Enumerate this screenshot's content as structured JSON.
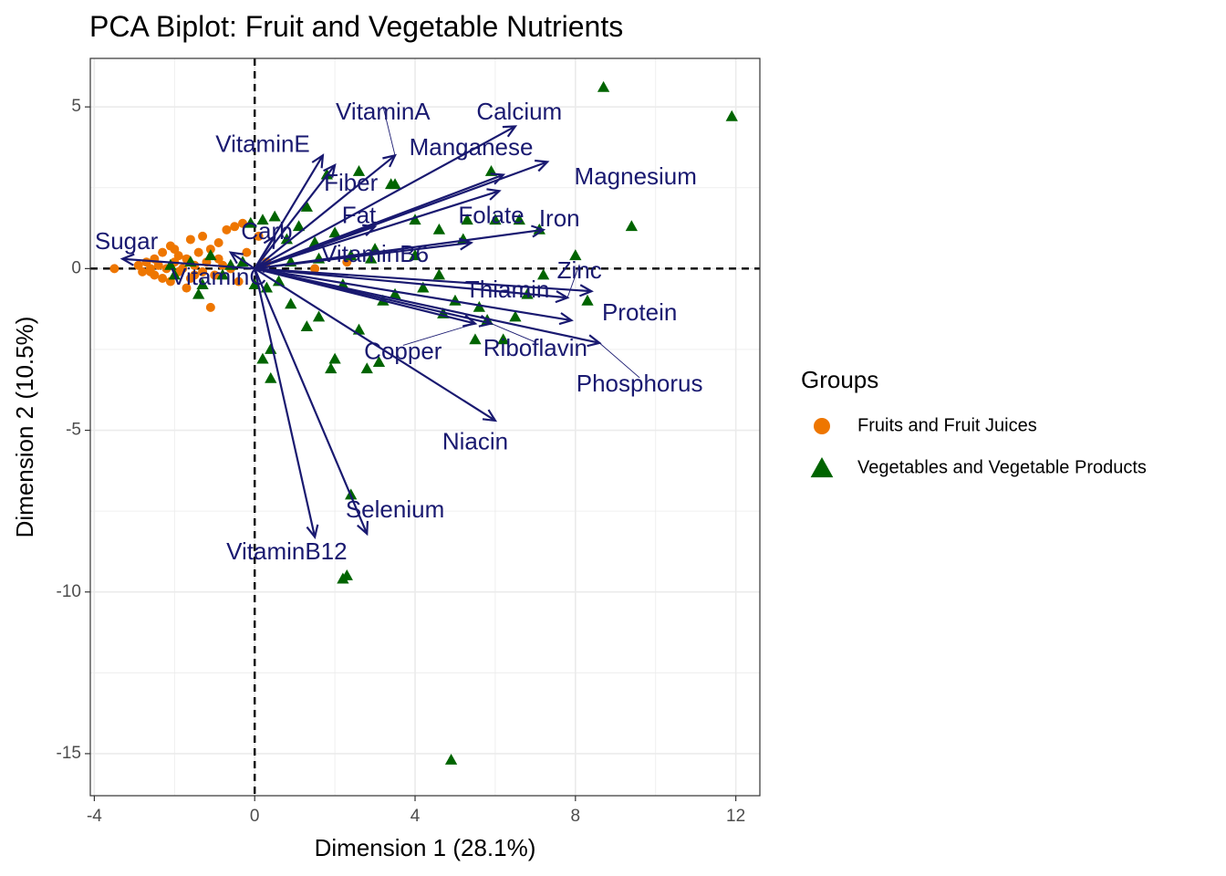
{
  "colors": {
    "fruits": "#ee7600",
    "vegetables": "#006400",
    "arrow": "#191970",
    "grid": "#ebebeb",
    "panel_border": "#333333"
  },
  "chart_data": {
    "type": "scatter",
    "title": "PCA Biplot: Fruit and Vegetable Nutrients",
    "xlabel": "Dimension 1 (28.1%)",
    "ylabel": "Dimension 2 (10.5%)",
    "xlim": [
      -4.1,
      12.6
    ],
    "ylim": [
      -16.3,
      6.5
    ],
    "x_ticks": [
      -4,
      0,
      4,
      8,
      12
    ],
    "y_ticks": [
      5,
      0,
      -5,
      -10,
      -15
    ],
    "grid": true,
    "reference_lines": {
      "x": 0,
      "y": 0,
      "style": "dashed"
    },
    "legend": {
      "title": "Groups",
      "position": "right",
      "entries": [
        "Fruits and Fruit Juices",
        "Vegetables and Vegetable Products"
      ]
    },
    "series": [
      {
        "name": "Fruits and Fruit Juices",
        "shape": "circle",
        "points": [
          [
            -3.5,
            0.0
          ],
          [
            -2.9,
            0.1
          ],
          [
            -2.8,
            -0.1
          ],
          [
            -2.7,
            0.2
          ],
          [
            -2.6,
            0.0
          ],
          [
            -2.5,
            -0.2
          ],
          [
            -2.5,
            0.3
          ],
          [
            -2.4,
            0.1
          ],
          [
            -2.3,
            -0.3
          ],
          [
            -2.3,
            0.5
          ],
          [
            -2.2,
            0.0
          ],
          [
            -2.1,
            0.7
          ],
          [
            -2.1,
            -0.4
          ],
          [
            -2.0,
            0.2
          ],
          [
            -1.9,
            -0.1
          ],
          [
            -1.9,
            0.4
          ],
          [
            -1.8,
            0.0
          ],
          [
            -1.7,
            -0.6
          ],
          [
            -1.7,
            0.3
          ],
          [
            -1.6,
            0.9
          ],
          [
            -1.6,
            -0.3
          ],
          [
            -1.5,
            0.1
          ],
          [
            -1.4,
            0.5
          ],
          [
            -1.3,
            -0.1
          ],
          [
            -1.3,
            1.0
          ],
          [
            -1.2,
            0.2
          ],
          [
            -1.1,
            -1.2
          ],
          [
            -1.1,
            0.6
          ],
          [
            -1.0,
            -0.2
          ],
          [
            -0.9,
            0.8
          ],
          [
            -0.8,
            0.1
          ],
          [
            -0.7,
            1.2
          ],
          [
            -0.6,
            0.0
          ],
          [
            -0.5,
            1.3
          ],
          [
            -0.4,
            -0.4
          ],
          [
            -0.3,
            1.4
          ],
          [
            -0.2,
            0.5
          ],
          [
            0.1,
            1.0
          ],
          [
            0.3,
            0.2
          ],
          [
            1.5,
            0.0
          ],
          [
            2.3,
            0.2
          ],
          [
            -2.6,
            -0.1
          ],
          [
            -2.0,
            0.6
          ],
          [
            -1.5,
            -0.2
          ],
          [
            -0.9,
            0.3
          ]
        ]
      },
      {
        "name": "Vegetables and Vegetable Products",
        "shape": "triangle",
        "points": [
          [
            8.7,
            5.6
          ],
          [
            11.9,
            4.7
          ],
          [
            9.4,
            1.3
          ],
          [
            7.1,
            1.2
          ],
          [
            8.0,
            0.4
          ],
          [
            8.3,
            -1.0
          ],
          [
            7.2,
            -0.2
          ],
          [
            6.6,
            1.5
          ],
          [
            6.0,
            1.5
          ],
          [
            5.3,
            1.5
          ],
          [
            4.6,
            1.2
          ],
          [
            4.0,
            1.5
          ],
          [
            3.5,
            2.6
          ],
          [
            3.4,
            2.6
          ],
          [
            2.6,
            3.0
          ],
          [
            1.8,
            2.9
          ],
          [
            1.3,
            1.9
          ],
          [
            2.0,
            1.1
          ],
          [
            2.9,
            0.3
          ],
          [
            3.5,
            -0.8
          ],
          [
            4.6,
            -0.2
          ],
          [
            5.0,
            -1.0
          ],
          [
            5.6,
            -1.2
          ],
          [
            6.5,
            -1.5
          ],
          [
            6.2,
            -2.2
          ],
          [
            5.5,
            -2.2
          ],
          [
            4.7,
            -1.4
          ],
          [
            3.1,
            -2.9
          ],
          [
            2.8,
            -3.1
          ],
          [
            2.6,
            -1.9
          ],
          [
            2.0,
            -2.8
          ],
          [
            1.9,
            -3.1
          ],
          [
            1.6,
            -1.5
          ],
          [
            1.3,
            -1.8
          ],
          [
            0.9,
            -1.1
          ],
          [
            0.4,
            -2.5
          ],
          [
            0.2,
            -2.8
          ],
          [
            0.4,
            -3.4
          ],
          [
            2.4,
            -7.0
          ],
          [
            2.2,
            -9.6
          ],
          [
            2.3,
            -9.5
          ],
          [
            4.9,
            -15.2
          ],
          [
            5.9,
            3.0
          ],
          [
            5.2,
            0.9
          ],
          [
            4.0,
            0.4
          ],
          [
            3.0,
            0.6
          ],
          [
            2.4,
            0.4
          ],
          [
            1.6,
            0.3
          ],
          [
            0.9,
            0.2
          ],
          [
            0.6,
            -0.4
          ],
          [
            0.3,
            -0.6
          ],
          [
            0.0,
            -0.5
          ],
          [
            -0.3,
            0.2
          ],
          [
            -0.6,
            0.1
          ],
          [
            -0.8,
            -0.2
          ],
          [
            -1.1,
            0.4
          ],
          [
            -1.3,
            -0.5
          ],
          [
            -1.4,
            -0.8
          ],
          [
            -1.6,
            0.2
          ],
          [
            -2.0,
            -0.2
          ],
          [
            -2.1,
            0.1
          ],
          [
            0.5,
            1.6
          ],
          [
            0.2,
            1.5
          ],
          [
            -0.1,
            1.4
          ],
          [
            0.8,
            0.9
          ],
          [
            1.1,
            1.3
          ],
          [
            1.5,
            0.8
          ],
          [
            2.2,
            -0.5
          ],
          [
            3.2,
            -1.0
          ],
          [
            4.2,
            -0.6
          ],
          [
            5.8,
            -1.6
          ],
          [
            6.8,
            -0.8
          ]
        ]
      }
    ],
    "loadings": [
      {
        "name": "VitaminA",
        "x": 3.5,
        "y": 3.5
      },
      {
        "name": "Calcium",
        "x": 6.5,
        "y": 4.4
      },
      {
        "name": "VitaminE",
        "x": 1.7,
        "y": 3.5
      },
      {
        "name": "Manganese",
        "x": 7.3,
        "y": 3.3
      },
      {
        "name": "Fiber",
        "x": 2.0,
        "y": 3.2
      },
      {
        "name": "Magnesium",
        "x": 6.2,
        "y": 2.9
      },
      {
        "name": "Fat",
        "x": 3.0,
        "y": 1.3
      },
      {
        "name": "Folate",
        "x": 6.1,
        "y": 2.4
      },
      {
        "name": "Iron",
        "x": 7.2,
        "y": 1.2
      },
      {
        "name": "Carb",
        "x": 0.5,
        "y": 1.0
      },
      {
        "name": "Sugar",
        "x": -3.3,
        "y": 0.3
      },
      {
        "name": "VitaminB6",
        "x": 5.4,
        "y": 0.8
      },
      {
        "name": "VitaminC",
        "x": -0.6,
        "y": 0.5
      },
      {
        "name": "Zinc",
        "x": 7.8,
        "y": -0.9
      },
      {
        "name": "Thiamin",
        "x": 8.4,
        "y": -0.7
      },
      {
        "name": "Protein",
        "x": 7.9,
        "y": -1.6
      },
      {
        "name": "Riboflavin",
        "x": 5.9,
        "y": -1.7
      },
      {
        "name": "Phosphorus",
        "x": 8.6,
        "y": -2.3
      },
      {
        "name": "Copper",
        "x": 5.5,
        "y": -1.7
      },
      {
        "name": "Niacin",
        "x": 6.0,
        "y": -4.7
      },
      {
        "name": "Selenium",
        "x": 2.8,
        "y": -8.2
      },
      {
        "name": "VitaminB12",
        "x": 1.5,
        "y": -8.3
      }
    ],
    "label_positions": {
      "VitaminA": [
        3.2,
        4.8
      ],
      "Calcium": [
        6.6,
        4.8
      ],
      "VitaminE": [
        0.2,
        3.8
      ],
      "Manganese": [
        5.4,
        3.7
      ],
      "Fiber": [
        2.4,
        2.6
      ],
      "Magnesium": [
        9.5,
        2.8
      ],
      "Fat": [
        2.6,
        1.6
      ],
      "Folate": [
        5.9,
        1.6
      ],
      "Iron": [
        7.6,
        1.5
      ],
      "Carb": [
        0.3,
        1.1
      ],
      "Sugar": [
        -3.2,
        0.8
      ],
      "VitaminB6": [
        3.0,
        0.4
      ],
      "VitaminC": [
        -0.9,
        -0.3
      ],
      "Zinc": [
        8.1,
        -0.1
      ],
      "Thiamin": [
        6.3,
        -0.7
      ],
      "Protein": [
        9.6,
        -1.4
      ],
      "Riboflavin": [
        7.0,
        -2.5
      ],
      "Phosphorus": [
        9.6,
        -3.6
      ],
      "Copper": [
        3.7,
        -2.6
      ],
      "Niacin": [
        5.5,
        -5.4
      ],
      "Selenium": [
        3.5,
        -7.5
      ],
      "VitaminB12": [
        0.8,
        -8.8
      ]
    },
    "label_connectors": [
      "VitaminA",
      "Zinc",
      "Riboflavin",
      "Phosphorus",
      "Copper"
    ]
  }
}
